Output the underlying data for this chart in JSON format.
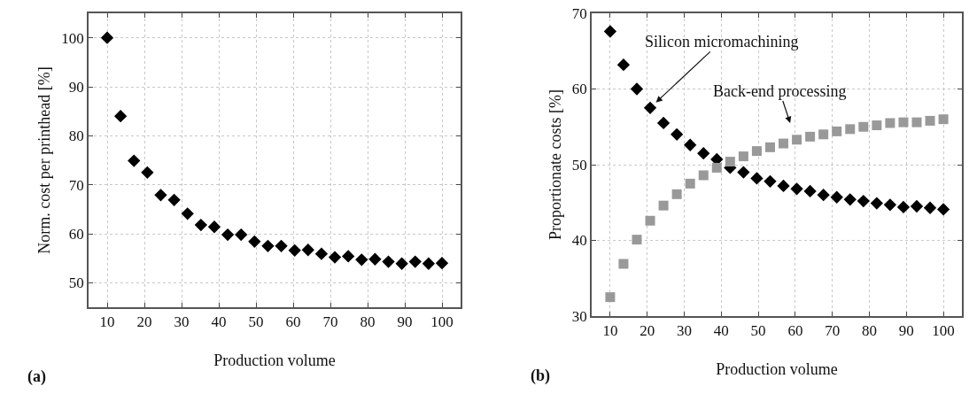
{
  "chart_data": [
    {
      "type": "scatter",
      "xlabel": "Production volume",
      "ylabel": "Norm. cost per printhead [%]",
      "annotations": [
        "(a)"
      ],
      "x": [
        10,
        13.6,
        17.2,
        20.8,
        24.4,
        28,
        31.6,
        35.2,
        38.8,
        42.4,
        46,
        49.6,
        53.2,
        56.8,
        60.4,
        64,
        67.6,
        71.2,
        74.8,
        78.4,
        82,
        85.6,
        89.2,
        92.8,
        96.4,
        100
      ],
      "series": [
        {
          "color": "#000000",
          "values": [
            100,
            84.0,
            74.9,
            72.5,
            67.9,
            66.9,
            64.1,
            61.8,
            61.4,
            59.8,
            59.8,
            58.4,
            57.5,
            57.5,
            56.6,
            56.7,
            55.9,
            55.2,
            55.4,
            54.7,
            54.8,
            54.3,
            53.9,
            54.3,
            53.9,
            54.0
          ]
        }
      ],
      "xlim": [
        5,
        105
      ],
      "xticks": [
        10,
        20,
        30,
        40,
        50,
        60,
        70,
        80,
        90,
        100
      ],
      "ylim": [
        45,
        105
      ],
      "yticks": [
        50,
        60,
        70,
        80,
        90,
        100
      ],
      "grid": true,
      "marker": "diamond"
    },
    {
      "type": "scatter",
      "xlabel": "Production volume",
      "ylabel": "Proportionate costs [%]",
      "annotations": [
        "(b)",
        {
          "text": "Silicon micromachining",
          "x": 20.8,
          "y": 57.5
        },
        {
          "text": "Back-end processing",
          "x": 59.3,
          "y": 54.5
        }
      ],
      "x": [
        10,
        13.6,
        17.2,
        20.8,
        24.4,
        28,
        31.6,
        35.2,
        38.8,
        42.4,
        46,
        49.6,
        53.2,
        56.8,
        60.4,
        64,
        67.6,
        71.2,
        74.8,
        78.4,
        82,
        85.6,
        89.2,
        92.8,
        96.4,
        100
      ],
      "series": [
        {
          "color": "#000000",
          "marker": "diamond",
          "values": [
            67.6,
            63.2,
            60.0,
            57.5,
            55.5,
            54.0,
            52.6,
            51.5,
            50.7,
            49.6,
            49.0,
            48.2,
            47.8,
            47.2,
            46.8,
            46.5,
            46.0,
            45.7,
            45.4,
            45.2,
            44.9,
            44.7,
            44.4,
            44.5,
            44.3,
            44.1
          ]
        },
        {
          "color": "#999999",
          "marker": "square",
          "values": [
            32.5,
            36.9,
            40.1,
            42.6,
            44.6,
            46.1,
            47.5,
            48.6,
            49.6,
            50.4,
            51.1,
            51.8,
            52.3,
            52.8,
            53.3,
            53.7,
            54.0,
            54.4,
            54.7,
            55.0,
            55.2,
            55.5,
            55.6,
            55.6,
            55.8,
            56.0
          ]
        }
      ],
      "xlim": [
        5,
        105
      ],
      "xticks": [
        10,
        20,
        30,
        40,
        50,
        60,
        70,
        80,
        90,
        100
      ],
      "ylim": [
        30,
        70
      ],
      "yticks": [
        30,
        40,
        50,
        60,
        70
      ],
      "grid": true
    }
  ]
}
